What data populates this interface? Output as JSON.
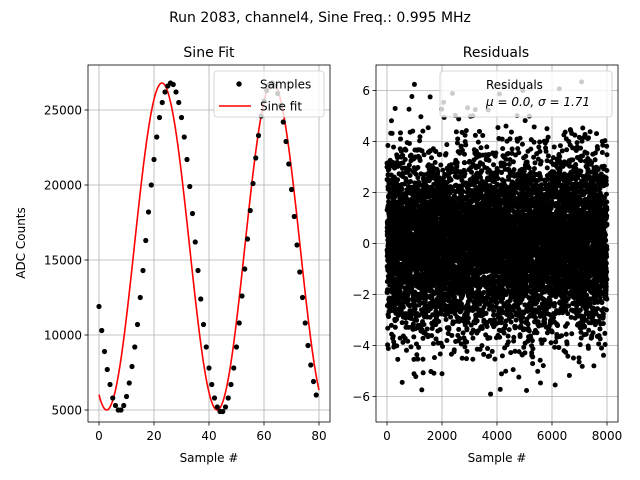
{
  "figure": {
    "suptitle": "Run 2083, channel4, Sine Freq.: 0.995 MHz"
  },
  "chart_data": [
    {
      "type": "line",
      "title": "Sine Fit",
      "xlabel": "Sample #",
      "ylabel": "ADC Counts",
      "xlim": [
        -4,
        84
      ],
      "ylim": [
        4200,
        28000
      ],
      "xticks": [
        0,
        20,
        40,
        60,
        80
      ],
      "yticks": [
        5000,
        10000,
        15000,
        20000,
        25000
      ],
      "grid": true,
      "legend_position": "top-right",
      "sine_model": {
        "amplitude": 10900,
        "offset": 15900,
        "period": 40.2,
        "phase_deg": 245
      },
      "series": [
        {
          "name": "Samples",
          "style": "points",
          "color": "#000000",
          "x": [
            0,
            1,
            2,
            3,
            4,
            5,
            6,
            7,
            8,
            9,
            10,
            11,
            12,
            13,
            14,
            15,
            16,
            17,
            18,
            19,
            20,
            21,
            22,
            23,
            24,
            25,
            26,
            27,
            28,
            29,
            30,
            31,
            32,
            33,
            34,
            35,
            36,
            37,
            38,
            39,
            40,
            41,
            42,
            43,
            44,
            45,
            46,
            47,
            48,
            49,
            50,
            51,
            52,
            53,
            54,
            55,
            56,
            57,
            58,
            59,
            60,
            61,
            62,
            63,
            64,
            65,
            66,
            67,
            68,
            69,
            70,
            71,
            72,
            73,
            74,
            75,
            76,
            77,
            78,
            79
          ],
          "y": [
            11900,
            10300,
            8900,
            7700,
            6700,
            5800,
            5300,
            5000,
            5000,
            5300,
            5900,
            6800,
            7900,
            9200,
            10700,
            12500,
            14300,
            16300,
            18200,
            20000,
            21700,
            23200,
            24500,
            25500,
            26200,
            26600,
            26800,
            26700,
            26200,
            25500,
            24500,
            23200,
            21700,
            19900,
            18100,
            16200,
            14300,
            12400,
            10700,
            9200,
            7800,
            6700,
            5800,
            5200,
            4900,
            4900,
            5200,
            5800,
            6700,
            7800,
            9200,
            10800,
            12600,
            14400,
            16400,
            18300,
            20100,
            21800,
            23300,
            24600,
            25600,
            26300,
            26700,
            26800,
            26600,
            26100,
            25300,
            24200,
            22900,
            21400,
            19700,
            17900,
            16000,
            14200,
            12500,
            10800,
            9300,
            8000,
            6900,
            6000
          ]
        },
        {
          "name": "Sine fit",
          "style": "line",
          "color": "#ff0000"
        }
      ]
    },
    {
      "type": "scatter",
      "title": "Residuals",
      "xlabel": "Sample #",
      "ylabel": "",
      "xlim": [
        -400,
        8400
      ],
      "ylim": [
        -7,
        7
      ],
      "xticks": [
        0,
        2000,
        4000,
        6000,
        8000
      ],
      "yticks": [
        -6,
        -4,
        -2,
        0,
        2,
        4,
        6
      ],
      "grid": true,
      "legend_position": "top-right",
      "series": [
        {
          "name": "Residuals",
          "color": "#000000",
          "legend_stats": "μ = 0.0, σ = 1.71",
          "n_points": 8000,
          "mean": 0.0,
          "std": 1.71,
          "x_range": [
            0,
            8000
          ]
        }
      ]
    }
  ]
}
